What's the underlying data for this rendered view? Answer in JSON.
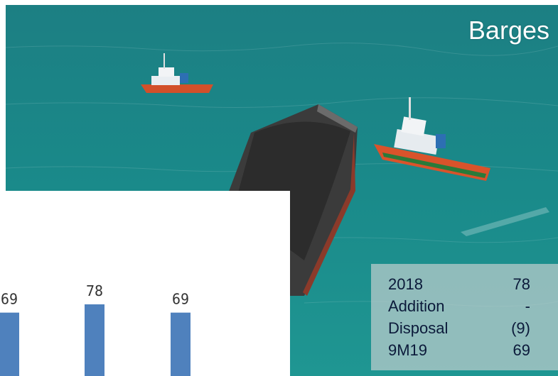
{
  "photo": {
    "title": "Barges",
    "accent": "#1f8f8e"
  },
  "fleet_table": {
    "rows": [
      {
        "label": "2018",
        "value": "78"
      },
      {
        "label": "Addition",
        "value": "-"
      },
      {
        "label": "Disposal",
        "value": "(9)"
      },
      {
        "label": "9M19",
        "value": "69"
      }
    ]
  },
  "chart_data": {
    "type": "bar",
    "categories": [
      "",
      "",
      ""
    ],
    "values": [
      69,
      78,
      69
    ],
    "data_labels": [
      "69",
      "78",
      "69"
    ],
    "title": "",
    "xlabel": "",
    "ylabel": "",
    "ylim": [
      0,
      78
    ],
    "grid": false,
    "bar_color": "#4f81bd"
  }
}
